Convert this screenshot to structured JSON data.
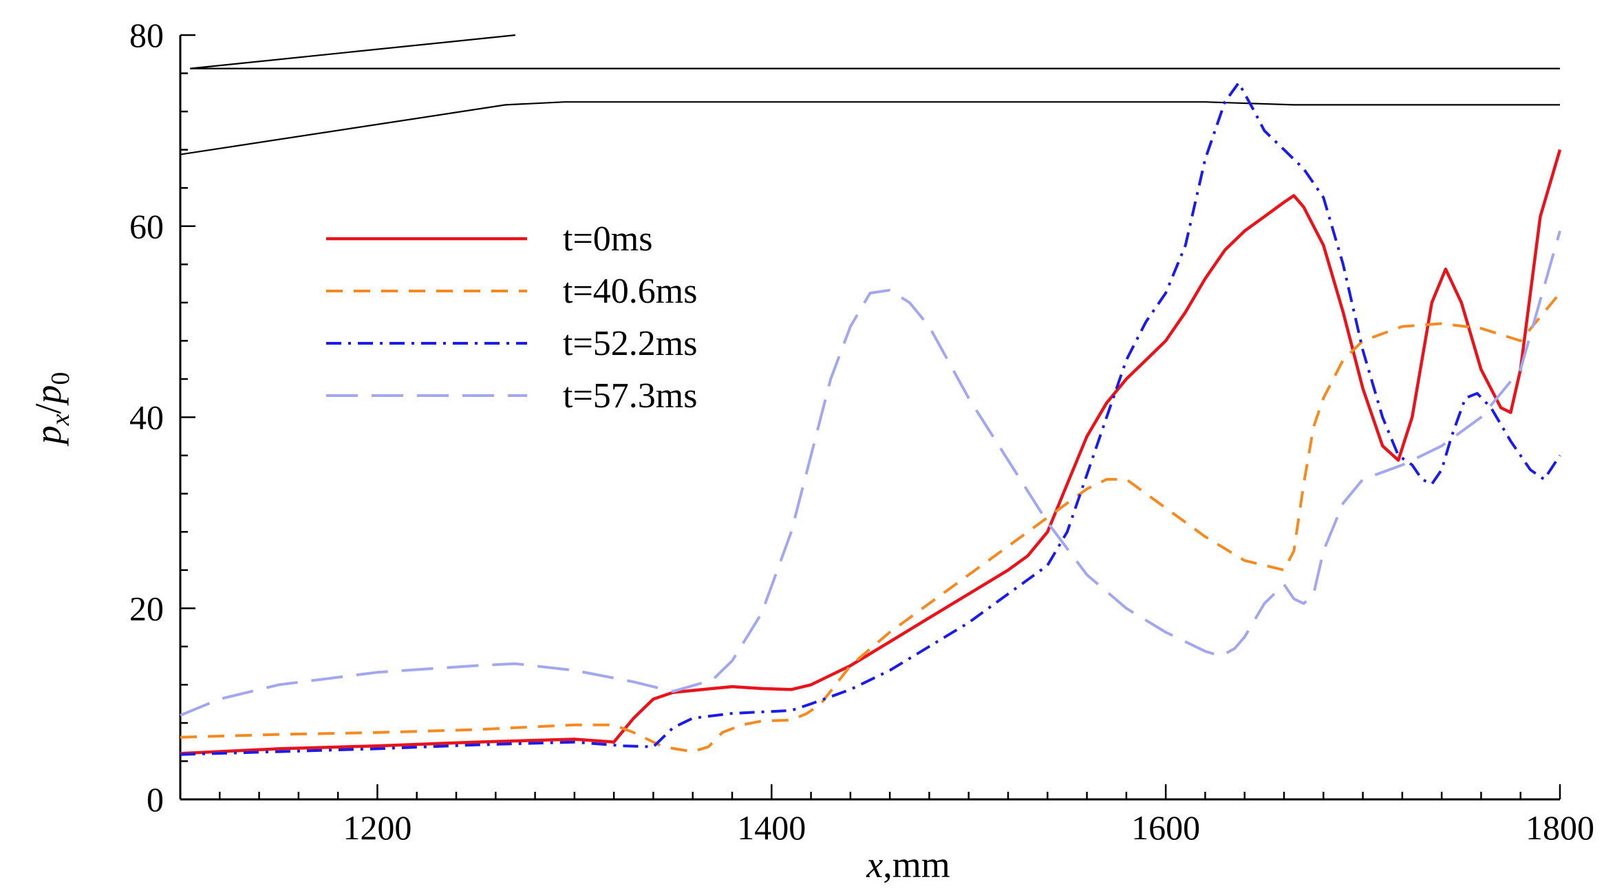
{
  "chart_data": {
    "type": "line",
    "title": "",
    "xlabel": {
      "var": "x",
      "unit": ",mm"
    },
    "ylabel": {
      "var": "p",
      "sub": "x",
      "sep": "/",
      "var2": "p",
      "sub2": "0"
    },
    "xlim": [
      1100,
      1800
    ],
    "ylim": [
      0,
      80
    ],
    "xticks": [
      1200,
      1400,
      1600,
      1800
    ],
    "yticks": [
      0,
      20,
      40,
      60,
      80
    ],
    "legend_position": "upper-left",
    "series": [
      {
        "name": "t=0ms",
        "color": "#e8141c",
        "dash": "solid",
        "x": [
          1100,
          1150,
          1200,
          1250,
          1300,
          1320,
          1330,
          1340,
          1350,
          1365,
          1380,
          1395,
          1410,
          1420,
          1430,
          1440,
          1460,
          1480,
          1500,
          1520,
          1530,
          1540,
          1550,
          1560,
          1570,
          1580,
          1590,
          1600,
          1610,
          1620,
          1630,
          1640,
          1650,
          1660,
          1665,
          1670,
          1680,
          1690,
          1700,
          1710,
          1718,
          1725,
          1735,
          1742,
          1750,
          1760,
          1770,
          1775,
          1780,
          1790,
          1800
        ],
        "y": [
          4.8,
          5.3,
          5.6,
          6.0,
          6.3,
          6.0,
          8.5,
          10.5,
          11.2,
          11.5,
          11.8,
          11.6,
          11.5,
          12.0,
          13.0,
          14.0,
          16.5,
          19.0,
          21.5,
          24.0,
          25.5,
          28.0,
          33.0,
          38.0,
          41.5,
          44.0,
          46.0,
          48.0,
          51.0,
          54.5,
          57.5,
          59.5,
          61.0,
          62.5,
          63.2,
          62.0,
          58.0,
          51.0,
          43.0,
          37.0,
          35.5,
          40.0,
          52.0,
          55.5,
          52.0,
          45.0,
          41.0,
          40.5,
          45.0,
          61.0,
          68.0
        ]
      },
      {
        "name": "t=40.6ms",
        "color": "#f58a22",
        "dash": "dashed",
        "x": [
          1100,
          1150,
          1200,
          1250,
          1300,
          1320,
          1330,
          1345,
          1360,
          1368,
          1375,
          1385,
          1395,
          1410,
          1418,
          1425,
          1440,
          1460,
          1480,
          1500,
          1520,
          1540,
          1560,
          1570,
          1580,
          1590,
          1600,
          1620,
          1640,
          1660,
          1665,
          1670,
          1675,
          1680,
          1690,
          1700,
          1720,
          1740,
          1760,
          1780,
          1800
        ],
        "y": [
          6.5,
          6.8,
          7.0,
          7.3,
          7.8,
          7.8,
          7.0,
          5.5,
          5.0,
          5.5,
          7.0,
          7.8,
          8.2,
          8.3,
          9.0,
          10.0,
          14.0,
          17.5,
          20.5,
          23.5,
          26.5,
          29.5,
          32.5,
          33.5,
          33.5,
          32.0,
          30.5,
          27.5,
          25.0,
          24.0,
          26.0,
          33.0,
          39.0,
          42.0,
          46.0,
          48.0,
          49.5,
          49.8,
          49.3,
          48.0,
          53.0
        ]
      },
      {
        "name": "t=52.2ms",
        "color": "#1c1ce8",
        "dash": "dashdot",
        "x": [
          1100,
          1150,
          1200,
          1250,
          1300,
          1325,
          1340,
          1345,
          1350,
          1360,
          1380,
          1400,
          1410,
          1420,
          1440,
          1460,
          1480,
          1500,
          1520,
          1540,
          1550,
          1560,
          1570,
          1580,
          1590,
          1600,
          1610,
          1620,
          1630,
          1637,
          1645,
          1650,
          1660,
          1670,
          1680,
          1690,
          1700,
          1710,
          1718,
          1725,
          1730,
          1735,
          1740,
          1745,
          1752,
          1758,
          1765,
          1775,
          1785,
          1792,
          1800
        ],
        "y": [
          4.7,
          5.0,
          5.3,
          5.7,
          6.0,
          5.6,
          5.5,
          6.5,
          7.5,
          8.5,
          9.0,
          9.2,
          9.3,
          10.0,
          11.5,
          13.5,
          16.0,
          18.5,
          21.5,
          24.5,
          28.0,
          34.0,
          40.0,
          46.0,
          50.0,
          53.0,
          58.0,
          67.0,
          73.0,
          75.0,
          72.0,
          70.0,
          68.0,
          66.0,
          63.0,
          56.0,
          47.0,
          40.0,
          36.0,
          35.0,
          33.5,
          33.0,
          34.5,
          38.0,
          42.0,
          42.5,
          41.0,
          37.5,
          34.5,
          33.5,
          36.0
        ]
      },
      {
        "name": "t=57.3ms",
        "color": "#a3a7f0",
        "dash": "longdash",
        "x": [
          1100,
          1120,
          1150,
          1200,
          1250,
          1270,
          1300,
          1330,
          1350,
          1370,
          1380,
          1395,
          1410,
          1420,
          1430,
          1440,
          1450,
          1460,
          1470,
          1480,
          1500,
          1520,
          1540,
          1560,
          1580,
          1600,
          1620,
          1628,
          1635,
          1640,
          1650,
          1660,
          1665,
          1670,
          1675,
          1680,
          1690,
          1700,
          1720,
          1740,
          1760,
          1780,
          1800
        ],
        "y": [
          8.8,
          10.5,
          12.0,
          13.3,
          14.0,
          14.2,
          13.5,
          12.3,
          11.3,
          12.5,
          14.5,
          19.5,
          28.0,
          36.0,
          44.0,
          49.5,
          53.0,
          53.3,
          52.0,
          49.5,
          42.0,
          35.5,
          29.0,
          23.5,
          20.0,
          17.5,
          15.5,
          15.0,
          15.8,
          17.0,
          20.5,
          22.5,
          21.0,
          20.5,
          21.5,
          26.0,
          31.0,
          33.5,
          35.0,
          37.0,
          40.0,
          45.0,
          59.5
        ]
      }
    ]
  },
  "geometry_outline": [
    {
      "x": [
        1105,
        1270
      ],
      "y": [
        76.5,
        80.0
      ]
    },
    {
      "x": [
        1105,
        1800
      ],
      "y": [
        76.5,
        76.5
      ]
    },
    {
      "x": [
        1100,
        1265,
        1295,
        1620,
        1665,
        1800
      ],
      "y": [
        67.5,
        72.7,
        73.0,
        73.0,
        72.7,
        72.7
      ]
    }
  ]
}
